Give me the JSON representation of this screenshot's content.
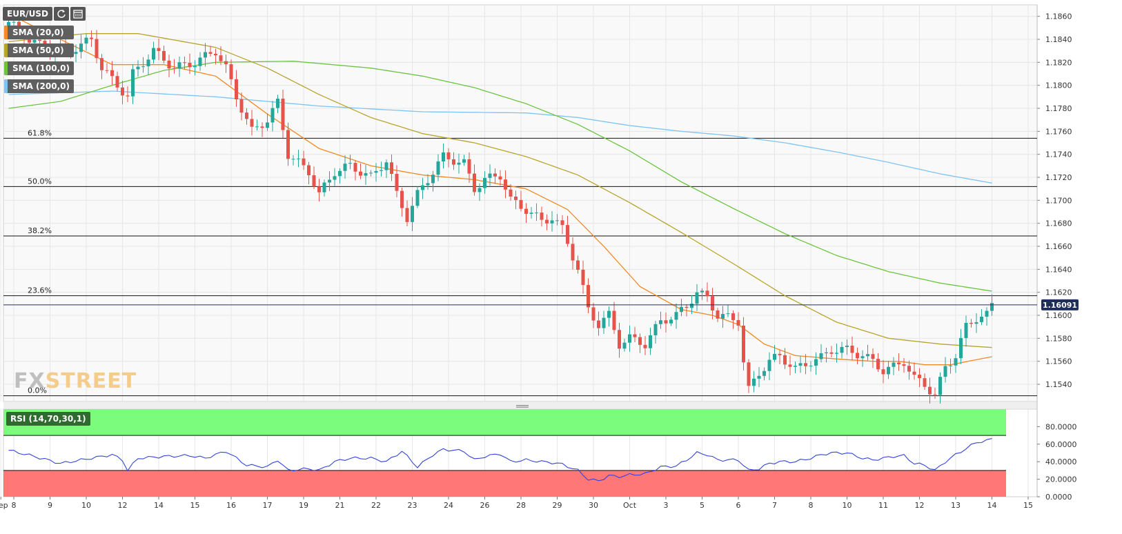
{
  "header": {
    "symbol": "EUR/USD"
  },
  "colors": {
    "bull": "#26a69a",
    "bear": "#e5534b",
    "sma20": "#f08a24",
    "sma50": "#b8a42a",
    "sma100": "#6cc33f",
    "sma200": "#7ec3f2",
    "rsi": "#3344dd",
    "rsi_over": "#7cfc7c",
    "rsi_under": "#ff7777",
    "grid": "#e6e6e6",
    "plot_bg": "#f9f9f9"
  },
  "icons": {
    "refresh": "refresh-icon",
    "calendar": "calendar-icon"
  },
  "watermark": {
    "part1": "FX",
    "part2": "STREET"
  },
  "chart_data": {
    "type": "candlestick",
    "price_range": [
      1.1525,
      1.187
    ],
    "y_ticks": [
      "1.1540",
      "1.1560",
      "1.1580",
      "1.1600",
      "1.1620",
      "1.1640",
      "1.1660",
      "1.1680",
      "1.1700",
      "1.1720",
      "1.1740",
      "1.1760",
      "1.1780",
      "1.1800",
      "1.1820",
      "1.1840",
      "1.1860"
    ],
    "x_labels": [
      "Sep",
      "8",
      "9",
      "10",
      "12",
      "14",
      "15",
      "16",
      "17",
      "19",
      "21",
      "22",
      "23",
      "24",
      "26",
      "28",
      "29",
      "30",
      "Oct",
      "3",
      "5",
      "6",
      "7",
      "8",
      "10",
      "11",
      "12",
      "13",
      "14",
      "15"
    ],
    "x_label_index": [
      -1.5,
      1,
      8,
      15,
      22,
      29,
      36,
      43,
      50,
      57,
      64,
      71,
      78,
      85,
      92,
      99,
      106,
      113,
      120,
      127,
      134,
      141,
      148,
      155,
      162,
      169,
      176,
      183,
      190,
      197
    ],
    "current_price": "1.16091",
    "fib_levels": [
      {
        "label": "61.8%",
        "value": 1.1754
      },
      {
        "label": "50.0%",
        "value": 1.1712
      },
      {
        "label": "38.2%",
        "value": 1.1669
      },
      {
        "label": "23.6%",
        "value": 1.1617
      },
      {
        "label": "0.0%",
        "value": 1.153
      }
    ],
    "series_legend": [
      "SMA (20,0)",
      "SMA (50,0)",
      "SMA (100,0)",
      "SMA (200,0)"
    ],
    "anchors": {
      "close": [
        [
          0,
          1.1855
        ],
        [
          4,
          1.184
        ],
        [
          8,
          1.183
        ],
        [
          12,
          1.183
        ],
        [
          16,
          1.184
        ],
        [
          18,
          1.1815
        ],
        [
          20,
          1.1805
        ],
        [
          23,
          1.179
        ],
        [
          24,
          1.181
        ],
        [
          28,
          1.183
        ],
        [
          32,
          1.1815
        ],
        [
          36,
          1.182
        ],
        [
          40,
          1.183
        ],
        [
          42,
          1.1815
        ],
        [
          44,
          1.179
        ],
        [
          47,
          1.176
        ],
        [
          50,
          1.177
        ],
        [
          52,
          1.1785
        ],
        [
          54,
          1.174
        ],
        [
          58,
          1.1725
        ],
        [
          60,
          1.1705
        ],
        [
          63,
          1.1725
        ],
        [
          66,
          1.173
        ],
        [
          70,
          1.172
        ],
        [
          73,
          1.1735
        ],
        [
          75,
          1.1705
        ],
        [
          77,
          1.1685
        ],
        [
          79,
          1.1705
        ],
        [
          82,
          1.1725
        ],
        [
          84,
          1.1738
        ],
        [
          88,
          1.1732
        ],
        [
          90,
          1.171
        ],
        [
          92,
          1.1718
        ],
        [
          95,
          1.1722
        ],
        [
          97,
          1.17
        ],
        [
          100,
          1.1692
        ],
        [
          103,
          1.1682
        ],
        [
          105,
          1.1685
        ],
        [
          107,
          1.1675
        ],
        [
          110,
          1.164
        ],
        [
          112,
          1.1605
        ],
        [
          114,
          1.1592
        ],
        [
          116,
          1.16
        ],
        [
          118,
          1.1575
        ],
        [
          120,
          1.158
        ],
        [
          123,
          1.1575
        ],
        [
          126,
          1.1595
        ],
        [
          129,
          1.16
        ],
        [
          131,
          1.1608
        ],
        [
          133,
          1.162
        ],
        [
          135,
          1.1615
        ],
        [
          137,
          1.16
        ],
        [
          139,
          1.1598
        ],
        [
          141,
          1.1595
        ],
        [
          142,
          1.156
        ],
        [
          143,
          1.1535
        ],
        [
          145,
          1.155
        ],
        [
          147,
          1.156
        ],
        [
          149,
          1.1565
        ],
        [
          152,
          1.1553
        ],
        [
          155,
          1.156
        ],
        [
          157,
          1.1563
        ],
        [
          159,
          1.157
        ],
        [
          162,
          1.157
        ],
        [
          165,
          1.1565
        ],
        [
          167,
          1.156
        ],
        [
          169,
          1.1552
        ],
        [
          171,
          1.1555
        ],
        [
          173,
          1.156
        ],
        [
          175,
          1.1545
        ],
        [
          177,
          1.154
        ],
        [
          179,
          1.153
        ],
        [
          181,
          1.1555
        ],
        [
          183,
          1.1565
        ],
        [
          185,
          1.159
        ],
        [
          187,
          1.1598
        ],
        [
          189,
          1.16
        ],
        [
          190,
          1.1609
        ]
      ],
      "sma20": [
        [
          0,
          1.1862
        ],
        [
          10,
          1.184
        ],
        [
          20,
          1.1818
        ],
        [
          30,
          1.1818
        ],
        [
          40,
          1.1808
        ],
        [
          50,
          1.1775
        ],
        [
          60,
          1.1745
        ],
        [
          70,
          1.173
        ],
        [
          80,
          1.1722
        ],
        [
          90,
          1.1718
        ],
        [
          100,
          1.171
        ],
        [
          108,
          1.1692
        ],
        [
          115,
          1.166
        ],
        [
          122,
          1.1625
        ],
        [
          130,
          1.1605
        ],
        [
          136,
          1.16
        ],
        [
          141,
          1.1592
        ],
        [
          146,
          1.1575
        ],
        [
          152,
          1.1565
        ],
        [
          160,
          1.1562
        ],
        [
          167,
          1.156
        ],
        [
          172,
          1.156
        ],
        [
          177,
          1.1557
        ],
        [
          182,
          1.1557
        ],
        [
          190,
          1.1564
        ]
      ],
      "sma50": [
        [
          0,
          1.1838
        ],
        [
          15,
          1.1845
        ],
        [
          25,
          1.1845
        ],
        [
          40,
          1.1833
        ],
        [
          50,
          1.1815
        ],
        [
          60,
          1.1792
        ],
        [
          70,
          1.1772
        ],
        [
          80,
          1.1758
        ],
        [
          90,
          1.175
        ],
        [
          100,
          1.1738
        ],
        [
          110,
          1.1722
        ],
        [
          120,
          1.1698
        ],
        [
          130,
          1.1672
        ],
        [
          140,
          1.1645
        ],
        [
          150,
          1.1617
        ],
        [
          160,
          1.1594
        ],
        [
          170,
          1.158
        ],
        [
          180,
          1.1575
        ],
        [
          190,
          1.1572
        ]
      ],
      "sma100": [
        [
          0,
          1.178
        ],
        [
          10,
          1.1786
        ],
        [
          20,
          1.18
        ],
        [
          30,
          1.1813
        ],
        [
          40,
          1.182
        ],
        [
          55,
          1.1821
        ],
        [
          70,
          1.1815
        ],
        [
          80,
          1.1808
        ],
        [
          90,
          1.1798
        ],
        [
          100,
          1.1784
        ],
        [
          110,
          1.1766
        ],
        [
          120,
          1.1743
        ],
        [
          130,
          1.1716
        ],
        [
          140,
          1.1693
        ],
        [
          150,
          1.1671
        ],
        [
          160,
          1.1652
        ],
        [
          170,
          1.1638
        ],
        [
          180,
          1.1628
        ],
        [
          190,
          1.1621
        ]
      ],
      "sma200": [
        [
          0,
          1.1792
        ],
        [
          20,
          1.1795
        ],
        [
          40,
          1.179
        ],
        [
          60,
          1.1782
        ],
        [
          80,
          1.1777
        ],
        [
          100,
          1.1776
        ],
        [
          110,
          1.1772
        ],
        [
          120,
          1.1765
        ],
        [
          130,
          1.176
        ],
        [
          140,
          1.1756
        ],
        [
          150,
          1.175
        ],
        [
          160,
          1.1742
        ],
        [
          170,
          1.1733
        ],
        [
          180,
          1.1723
        ],
        [
          190,
          1.1715
        ]
      ],
      "rsi": [
        [
          0,
          53
        ],
        [
          5,
          46
        ],
        [
          10,
          38
        ],
        [
          15,
          43
        ],
        [
          20,
          48
        ],
        [
          22,
          42
        ],
        [
          23,
          30
        ],
        [
          25,
          44
        ],
        [
          30,
          46
        ],
        [
          35,
          47
        ],
        [
          38,
          44
        ],
        [
          42,
          52
        ],
        [
          46,
          36
        ],
        [
          50,
          34
        ],
        [
          52,
          42
        ],
        [
          54,
          30
        ],
        [
          58,
          32
        ],
        [
          60,
          30
        ],
        [
          63,
          40
        ],
        [
          66,
          44
        ],
        [
          70,
          44
        ],
        [
          73,
          40
        ],
        [
          76,
          52
        ],
        [
          79,
          34
        ],
        [
          82,
          48
        ],
        [
          84,
          54
        ],
        [
          88,
          52
        ],
        [
          90,
          42
        ],
        [
          92,
          46
        ],
        [
          95,
          49
        ],
        [
          97,
          40
        ],
        [
          100,
          42
        ],
        [
          103,
          40
        ],
        [
          105,
          39
        ],
        [
          107,
          37
        ],
        [
          110,
          30
        ],
        [
          112,
          20
        ],
        [
          114,
          18
        ],
        [
          116,
          24
        ],
        [
          118,
          23
        ],
        [
          120,
          25
        ],
        [
          123,
          26
        ],
        [
          126,
          34
        ],
        [
          129,
          35
        ],
        [
          131,
          42
        ],
        [
          133,
          50
        ],
        [
          135,
          48
        ],
        [
          137,
          42
        ],
        [
          139,
          42
        ],
        [
          141,
          42
        ],
        [
          143,
          30
        ],
        [
          145,
          32
        ],
        [
          147,
          38
        ],
        [
          149,
          40
        ],
        [
          152,
          40
        ],
        [
          155,
          44
        ],
        [
          157,
          48
        ],
        [
          159,
          50
        ],
        [
          162,
          50
        ],
        [
          165,
          44
        ],
        [
          167,
          42
        ],
        [
          169,
          44
        ],
        [
          171,
          46
        ],
        [
          173,
          47
        ],
        [
          175,
          38
        ],
        [
          177,
          36
        ],
        [
          179,
          30
        ],
        [
          181,
          40
        ],
        [
          183,
          48
        ],
        [
          185,
          55
        ],
        [
          187,
          62
        ],
        [
          189,
          64
        ],
        [
          190,
          66
        ]
      ]
    },
    "rsi": {
      "indicator": "RSI (14,70,30,1)",
      "overbought": 70,
      "oversold": 30,
      "y_ticks": [
        "0.0000",
        "20.0000",
        "40.0000",
        "60.0000",
        "80.0000"
      ]
    }
  }
}
